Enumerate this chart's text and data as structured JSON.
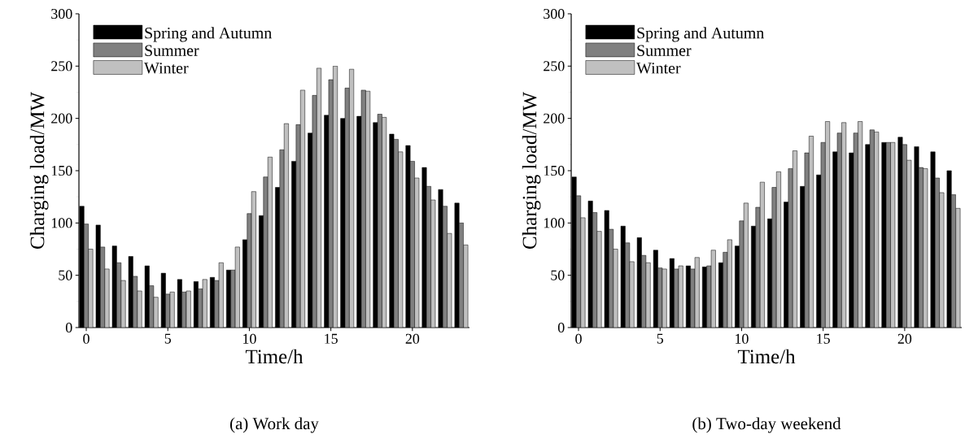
{
  "chart_data": [
    {
      "type": "bar",
      "title": "(a) Work day",
      "xlabel": "Time/h",
      "ylabel": "Charging load/MW",
      "x": [
        0,
        1,
        2,
        3,
        4,
        5,
        6,
        7,
        8,
        9,
        10,
        11,
        12,
        13,
        14,
        15,
        16,
        17,
        18,
        19,
        20,
        21,
        22,
        23
      ],
      "xlim": [
        -0.45,
        23.5
      ],
      "xticks": [
        0,
        5,
        10,
        15,
        20
      ],
      "ylim": [
        0,
        300
      ],
      "yticks": [
        0,
        50,
        100,
        150,
        200,
        250,
        300
      ],
      "legend": "top left",
      "series": [
        {
          "name": "Spring and Autumn",
          "color": "#000000",
          "values": [
            116,
            98,
            78,
            68,
            59,
            52,
            46,
            44,
            48,
            55,
            84,
            107,
            134,
            159,
            186,
            203,
            200,
            202,
            196,
            185,
            174,
            153,
            132,
            119
          ]
        },
        {
          "name": "Summer",
          "color": "#808080",
          "values": [
            99,
            77,
            62,
            49,
            40,
            32,
            34,
            37,
            45,
            55,
            109,
            144,
            170,
            194,
            222,
            237,
            229,
            227,
            204,
            180,
            159,
            135,
            116,
            100
          ]
        },
        {
          "name": "Winter",
          "color": "#c0c0c0",
          "values": [
            75,
            56,
            45,
            35,
            29,
            34,
            35,
            46,
            62,
            77,
            130,
            163,
            195,
            227,
            248,
            250,
            247,
            226,
            201,
            168,
            143,
            122,
            90,
            79
          ]
        }
      ]
    },
    {
      "type": "bar",
      "title": "(b) Two-day weekend",
      "xlabel": "Time/h",
      "ylabel": "Charging load/MW",
      "x": [
        0,
        1,
        2,
        3,
        4,
        5,
        6,
        7,
        8,
        9,
        10,
        11,
        12,
        13,
        14,
        15,
        16,
        17,
        18,
        19,
        20,
        21,
        22,
        23
      ],
      "xlim": [
        -0.45,
        23.5
      ],
      "xticks": [
        0,
        5,
        10,
        15,
        20
      ],
      "ylim": [
        0,
        300
      ],
      "yticks": [
        0,
        50,
        100,
        150,
        200,
        250,
        300
      ],
      "legend": "top left",
      "series": [
        {
          "name": "Spring and Autumn",
          "color": "#000000",
          "values": [
            144,
            121,
            112,
            97,
            86,
            74,
            66,
            59,
            58,
            62,
            78,
            97,
            104,
            120,
            135,
            146,
            168,
            167,
            175,
            177,
            182,
            173,
            168,
            150
          ]
        },
        {
          "name": "Summer",
          "color": "#808080",
          "values": [
            126,
            110,
            94,
            81,
            69,
            57,
            56,
            56,
            59,
            72,
            102,
            115,
            134,
            152,
            167,
            177,
            186,
            186,
            189,
            177,
            175,
            153,
            143,
            127
          ]
        },
        {
          "name": "Winter",
          "color": "#c0c0c0",
          "values": [
            105,
            92,
            75,
            63,
            62,
            56,
            59,
            67,
            74,
            84,
            119,
            139,
            149,
            169,
            183,
            197,
            196,
            197,
            187,
            177,
            160,
            152,
            129,
            114
          ]
        }
      ]
    }
  ]
}
